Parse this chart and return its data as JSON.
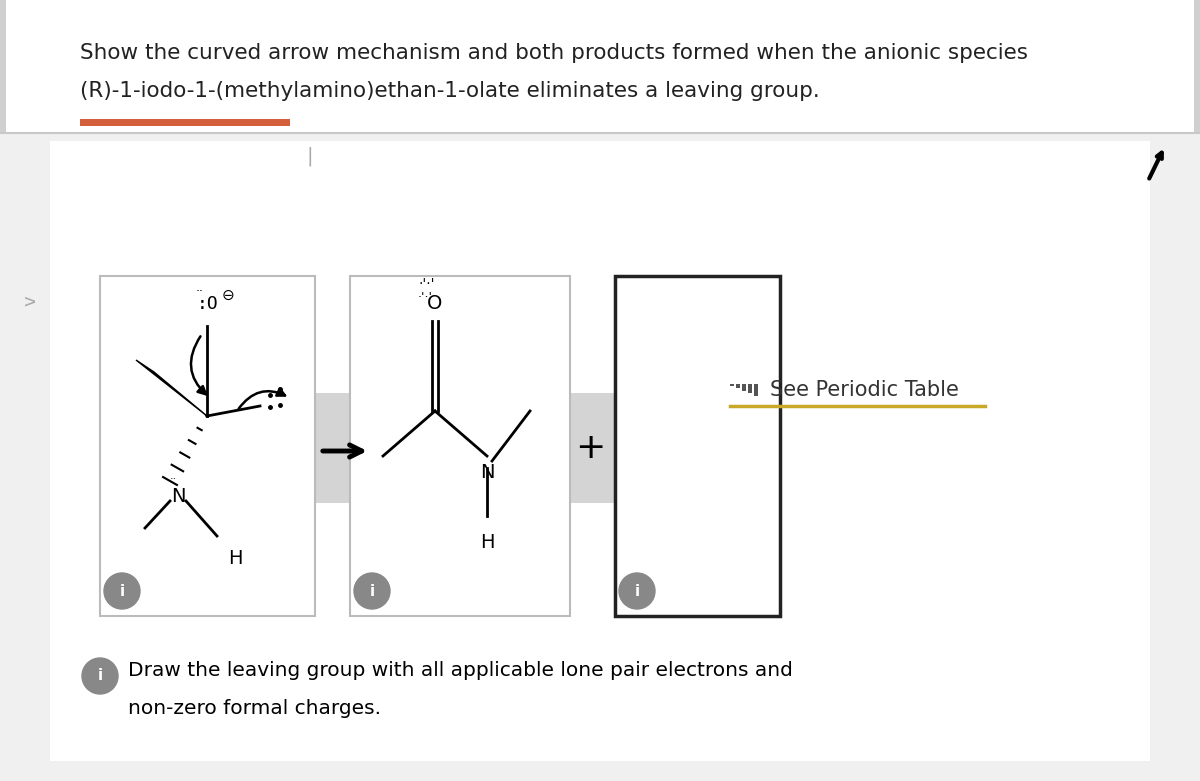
{
  "outer_bg": "#d8d8d8",
  "white_panel_bg": "#ffffff",
  "gray_section_bg": "#e8e8e8",
  "title_line1": "Show the curved arrow mechanism and both products formed when the anionic species",
  "title_line2": "(R)-1-iodo-1-(methylamino)ethan-1-olate eliminates a leaving group.",
  "red_bar_color": "#d45f3c",
  "divider_color": "#cccccc",
  "footer_line1": "Draw the leaving group with all applicable lone pair electrons and",
  "footer_line2": "non-zero formal charges.",
  "info_circle_color": "#888888",
  "periodic_text": "See Periodic Table",
  "periodic_underline_color": "#c9a827",
  "gray_band_color": "#d4d4d4",
  "arrow_color": "#333333",
  "box_border_light": "#bbbbbb",
  "box_border_dark": "#222222"
}
